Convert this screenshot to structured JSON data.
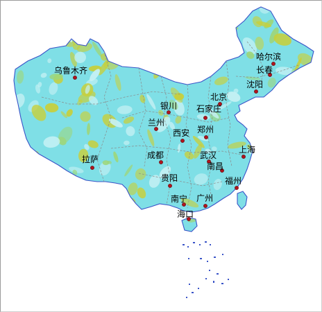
{
  "map": {
    "colors": {
      "land_base": "#7fdfe6",
      "land_light": "#c6f1f4",
      "land_yellow": "#c8cf3a",
      "land_green": "#9dd67c",
      "border": "#8a8a8a",
      "coast": "#3a54c8",
      "city_dot": "#b0141e",
      "city_dot_stroke": "#5a0000"
    },
    "cities": [
      {
        "id": "wulumuqi",
        "name": "乌鲁木齐"
      },
      {
        "id": "lasa",
        "name": "拉萨"
      },
      {
        "id": "lanzhou",
        "name": "兰州"
      },
      {
        "id": "yinchuan",
        "name": "银川"
      },
      {
        "id": "xian",
        "name": "西安"
      },
      {
        "id": "chengdu",
        "name": "成都"
      },
      {
        "id": "guiyang",
        "name": "贵阳"
      },
      {
        "id": "nanning",
        "name": "南宁"
      },
      {
        "id": "guangzhou",
        "name": "广州"
      },
      {
        "id": "haikou",
        "name": "海口"
      },
      {
        "id": "beijing",
        "name": "北京"
      },
      {
        "id": "shijiazhuang",
        "name": "石家庄"
      },
      {
        "id": "zhengzhou",
        "name": "郑州"
      },
      {
        "id": "wuhan",
        "name": "武汉"
      },
      {
        "id": "nanchang",
        "name": "南昌"
      },
      {
        "id": "shanghai",
        "name": "上海"
      },
      {
        "id": "fuzhou",
        "name": "福州"
      },
      {
        "id": "shenyang",
        "name": "沈阳"
      },
      {
        "id": "changchun",
        "name": "长春"
      },
      {
        "id": "haerbin",
        "name": "哈尔滨"
      }
    ]
  }
}
